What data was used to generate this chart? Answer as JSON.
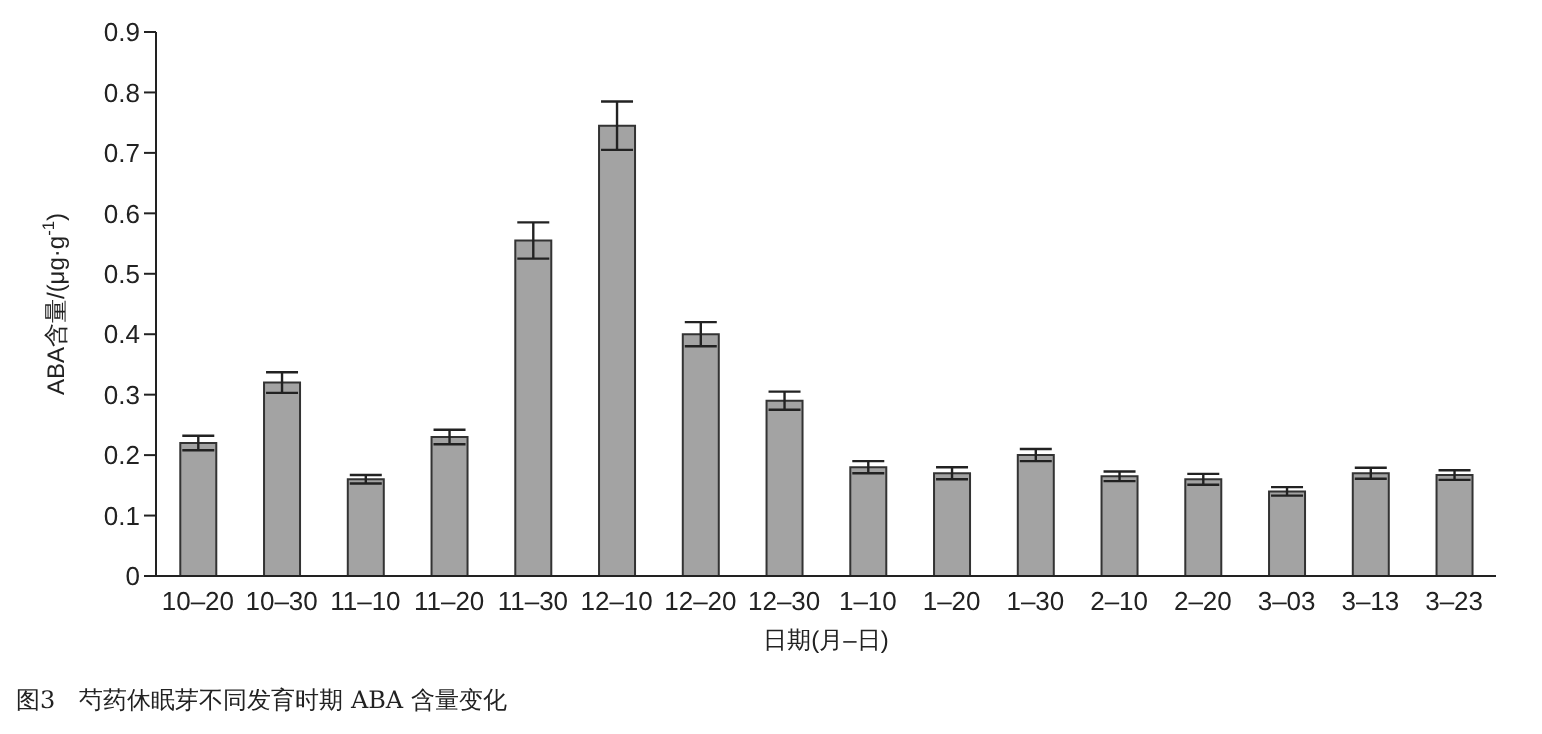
{
  "chart_data": {
    "type": "bar",
    "categories": [
      "10–20",
      "10–30",
      "11–10",
      "11–20",
      "11–30",
      "12–10",
      "12–20",
      "12–30",
      "1–10",
      "1–20",
      "1–30",
      "2–10",
      "2–20",
      "3–03",
      "3–13",
      "3–23"
    ],
    "values": [
      0.22,
      0.32,
      0.16,
      0.23,
      0.555,
      0.745,
      0.4,
      0.29,
      0.18,
      0.17,
      0.2,
      0.165,
      0.16,
      0.14,
      0.17,
      0.167
    ],
    "errors": [
      0.012,
      0.017,
      0.007,
      0.012,
      0.03,
      0.04,
      0.02,
      0.015,
      0.01,
      0.01,
      0.01,
      0.008,
      0.009,
      0.007,
      0.009,
      0.008
    ],
    "color": "#a3a3a3",
    "xlabel": "日期(月–日)",
    "ylabel": "ABA含量/(μg·g$^{-1}$)",
    "ylim": [
      0,
      0.9
    ],
    "yticks": [
      0,
      0.1,
      0.2,
      0.3,
      0.4,
      0.5,
      0.6,
      0.7,
      0.8,
      0.9
    ],
    "grid": false,
    "legend": false,
    "annotations": [
      "图3　芍药休眠芽不同发育时期 ABA 含量变化"
    ]
  }
}
